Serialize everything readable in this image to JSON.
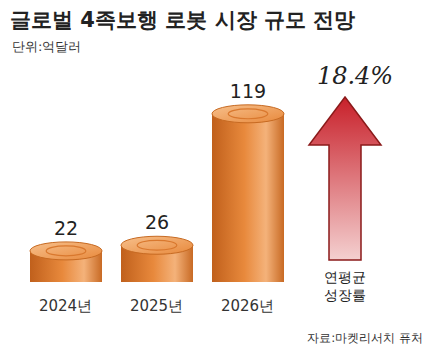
{
  "chart_data": {
    "type": "bar",
    "title": "글로벌 4족보행 로봇 시장 규모 전망",
    "subtitle": "단위:억달러",
    "categories": [
      "2024년",
      "2025년",
      "2026년"
    ],
    "values": [
      22,
      26,
      119
    ],
    "color": "#e8893c",
    "ylim": [
      0,
      150
    ],
    "data_labels": true,
    "tick_labels": "x",
    "annotation": "18.4%",
    "annotation_label": "연평균 성장률",
    "source": "자료:마켓리서치 퓨처"
  }
}
